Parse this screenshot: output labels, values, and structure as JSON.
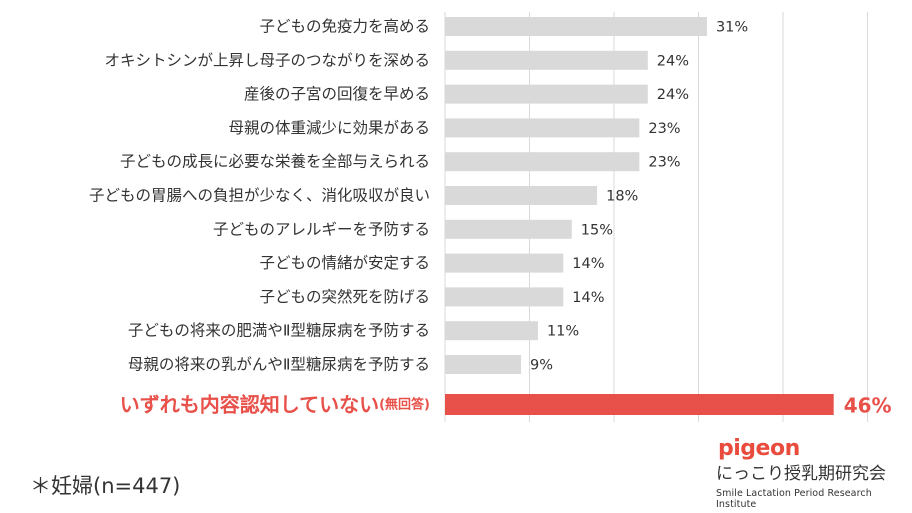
{
  "chart_data": {
    "type": "bar",
    "orientation": "horizontal",
    "title": "",
    "xlabel": "",
    "ylabel": "",
    "xlim": [
      0,
      50
    ],
    "grid": true,
    "value_suffix": "%",
    "categories": [
      "子どもの免疫力を高める",
      "オキシトシンが上昇し母子のつながりを深める",
      "産後の子宮の回復を早める",
      "母親の体重減少に効果がある",
      "子どもの成長に必要な栄養を全部与えられる",
      "子どもの胃腸への負担が少なく、消化吸収が良い",
      "子どものアレルギーを予防する",
      "子どもの情緒が安定する",
      "子どもの突然死を防げる",
      "子どもの将来の肥満やⅡ型糖尿病を予防する",
      "母親の将来の乳がんやⅡ型糖尿病を予防する",
      "いずれも内容認知していない"
    ],
    "category_suffix": [
      "",
      "",
      "",
      "",
      "",
      "",
      "",
      "",
      "",
      "",
      "",
      "(無回答)"
    ],
    "values": [
      31,
      24,
      24,
      23,
      23,
      18,
      15,
      14,
      14,
      11,
      9,
      46
    ],
    "highlight_index": 11
  },
  "colors": {
    "bar": "#d9d9d9",
    "highlight": "#e8504a",
    "text": "#333333",
    "grid": "#d9d9d9"
  },
  "footnote": "＊妊婦(n=447)",
  "logo": {
    "brand": "pigeon",
    "name_jp": "にっこり授乳期研究会",
    "name_en": "Smile Lactation Period Research Institute"
  }
}
